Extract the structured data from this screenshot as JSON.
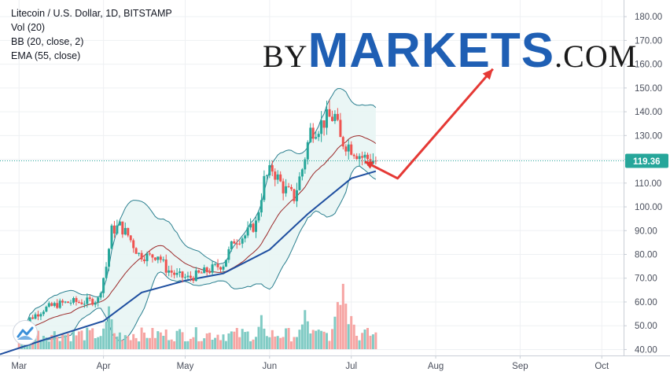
{
  "legend": {
    "symbol": "Litecoin / U.S. Dollar, 1D, BITSTAMP",
    "volume": "Vol (20)",
    "bollinger": "BB (20, close, 2)",
    "ema": "EMA (55, close)"
  },
  "watermark": {
    "prefix": "BY",
    "main": "MARKETS",
    "suffix": ".COM"
  },
  "colors": {
    "up": "#26a69a",
    "down": "#ef5350",
    "vol_up": "#80cbc4",
    "vol_down": "#f6a5a3",
    "bb_band": "#2a7f8f",
    "bb_fill": "#e6f4f3",
    "bb_basis": "#9c2a2a",
    "ema": "#1f4fa0",
    "price_line": "#26a69a",
    "price_label_bg": "#26a69a",
    "arrow": "#e53935"
  },
  "chart_data": {
    "type": "candlestick",
    "title": "Litecoin / U.S. Dollar, 1D, BITSTAMP",
    "x_tick_labels": [
      "Mar",
      "Apr",
      "May",
      "Jun",
      "Jul",
      "Aug",
      "Sep",
      "Oct"
    ],
    "y_tick_labels": [
      "40.00",
      "50.00",
      "60.00",
      "70.00",
      "80.00",
      "90.00",
      "100.00",
      "110.00",
      "120.00",
      "130.00",
      "140.00",
      "150.00",
      "160.00",
      "170.00",
      "180.00"
    ],
    "ylim": [
      37.5,
      187
    ],
    "xlim": [
      "2019-02-22",
      "2019-10-09"
    ],
    "last_price": 119.36,
    "last_price_label": "119.36",
    "anchors": [
      [
        "2019-03-01",
        45
      ],
      [
        "2019-03-05",
        53
      ],
      [
        "2019-03-10",
        57
      ],
      [
        "2019-03-15",
        59
      ],
      [
        "2019-03-20",
        60
      ],
      [
        "2019-03-25",
        60
      ],
      [
        "2019-03-30",
        61
      ],
      [
        "2019-04-02",
        75
      ],
      [
        "2019-04-04",
        90
      ],
      [
        "2019-04-07",
        92
      ],
      [
        "2019-04-10",
        88
      ],
      [
        "2019-04-14",
        80
      ],
      [
        "2019-04-18",
        79
      ],
      [
        "2019-04-21",
        80
      ],
      [
        "2019-04-24",
        74
      ],
      [
        "2019-04-28",
        71
      ],
      [
        "2019-05-02",
        70
      ],
      [
        "2019-05-07",
        72
      ],
      [
        "2019-05-11",
        74
      ],
      [
        "2019-05-15",
        76
      ],
      [
        "2019-05-19",
        86
      ],
      [
        "2019-05-23",
        88
      ],
      [
        "2019-05-27",
        93
      ],
      [
        "2019-05-30",
        111
      ],
      [
        "2019-06-02",
        116
      ],
      [
        "2019-06-06",
        108
      ],
      [
        "2019-06-10",
        104
      ],
      [
        "2019-06-13",
        116
      ],
      [
        "2019-06-16",
        132
      ],
      [
        "2019-06-19",
        134
      ],
      [
        "2019-06-22",
        137
      ],
      [
        "2019-06-25",
        138
      ],
      [
        "2019-06-27",
        128
      ],
      [
        "2019-06-30",
        126
      ],
      [
        "2019-07-02",
        124
      ],
      [
        "2019-07-05",
        121
      ],
      [
        "2019-07-08",
        120
      ],
      [
        "2019-07-10",
        119.4
      ]
    ],
    "volume_scale": {
      "unit": "relative",
      "max": 100
    },
    "volume_peaks": [
      [
        "2019-04-03",
        60
      ],
      [
        "2019-05-29",
        45
      ],
      [
        "2019-06-14",
        55
      ],
      [
        "2019-06-26",
        70
      ],
      [
        "2019-06-28",
        100
      ],
      [
        "2019-07-01",
        50
      ]
    ],
    "ema": {
      "name": "EMA (55, close)",
      "points": [
        [
          "2019-02-22",
          38
        ],
        [
          "2019-03-10",
          44
        ],
        [
          "2019-04-01",
          52
        ],
        [
          "2019-04-15",
          64
        ],
        [
          "2019-05-01",
          69
        ],
        [
          "2019-05-15",
          72
        ],
        [
          "2019-06-01",
          82
        ],
        [
          "2019-06-15",
          97
        ],
        [
          "2019-07-01",
          112
        ],
        [
          "2019-07-10",
          115
        ]
      ]
    },
    "bollinger": {
      "name": "BB (20, close, 2)",
      "period": 20,
      "std": 2
    },
    "annotation_arrow": {
      "points": [
        [
          "2019-07-06",
          119
        ],
        [
          "2019-07-18",
          112
        ],
        [
          "2019-08-22",
          158
        ]
      ]
    }
  }
}
